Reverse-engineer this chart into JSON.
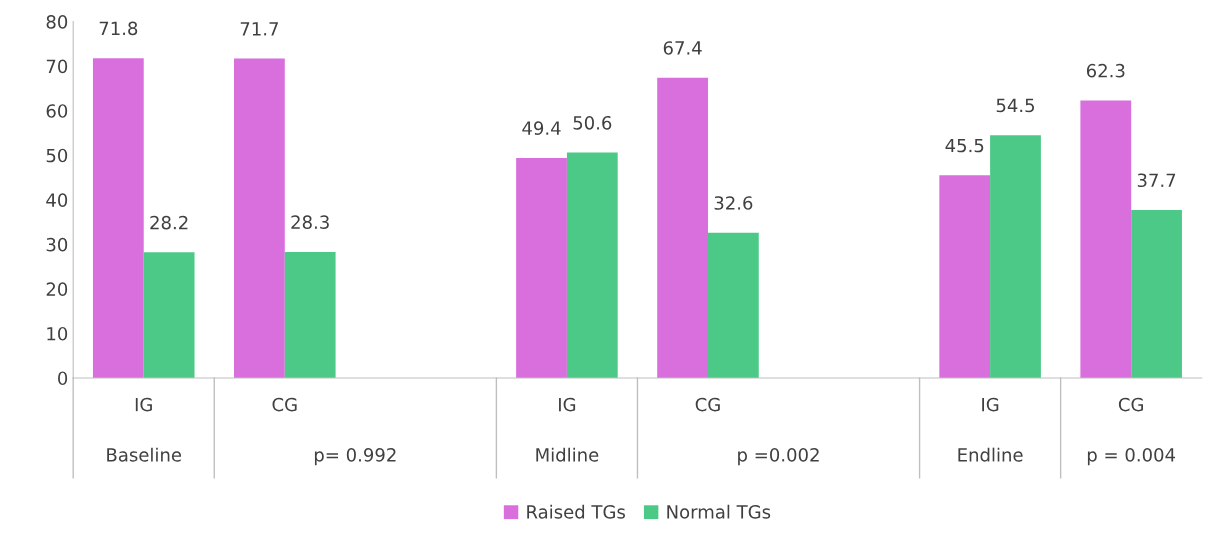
{
  "chart_data": {
    "type": "bar",
    "categories": [
      "IG",
      "CG",
      null,
      "IG",
      "CG",
      null,
      "IG",
      "CG"
    ],
    "series": [
      {
        "name": "Raised TGs",
        "color": "#d86fdc",
        "values": [
          71.8,
          71.7,
          null,
          49.4,
          67.4,
          null,
          45.5,
          62.3
        ]
      },
      {
        "name": "Normal TGs",
        "color": "#4dc987",
        "values": [
          28.2,
          28.3,
          null,
          50.6,
          32.6,
          null,
          54.5,
          37.7
        ]
      }
    ],
    "annotations": [
      "Baseline",
      "p= 0.992",
      "Midline",
      "p =0.002",
      "Endline",
      "p = 0.004"
    ],
    "ylim": [
      0,
      80
    ],
    "yticks": [
      0,
      10,
      20,
      30,
      40,
      50,
      60,
      70,
      80
    ],
    "data_labels": true,
    "grid": false,
    "legend": "bottom"
  }
}
